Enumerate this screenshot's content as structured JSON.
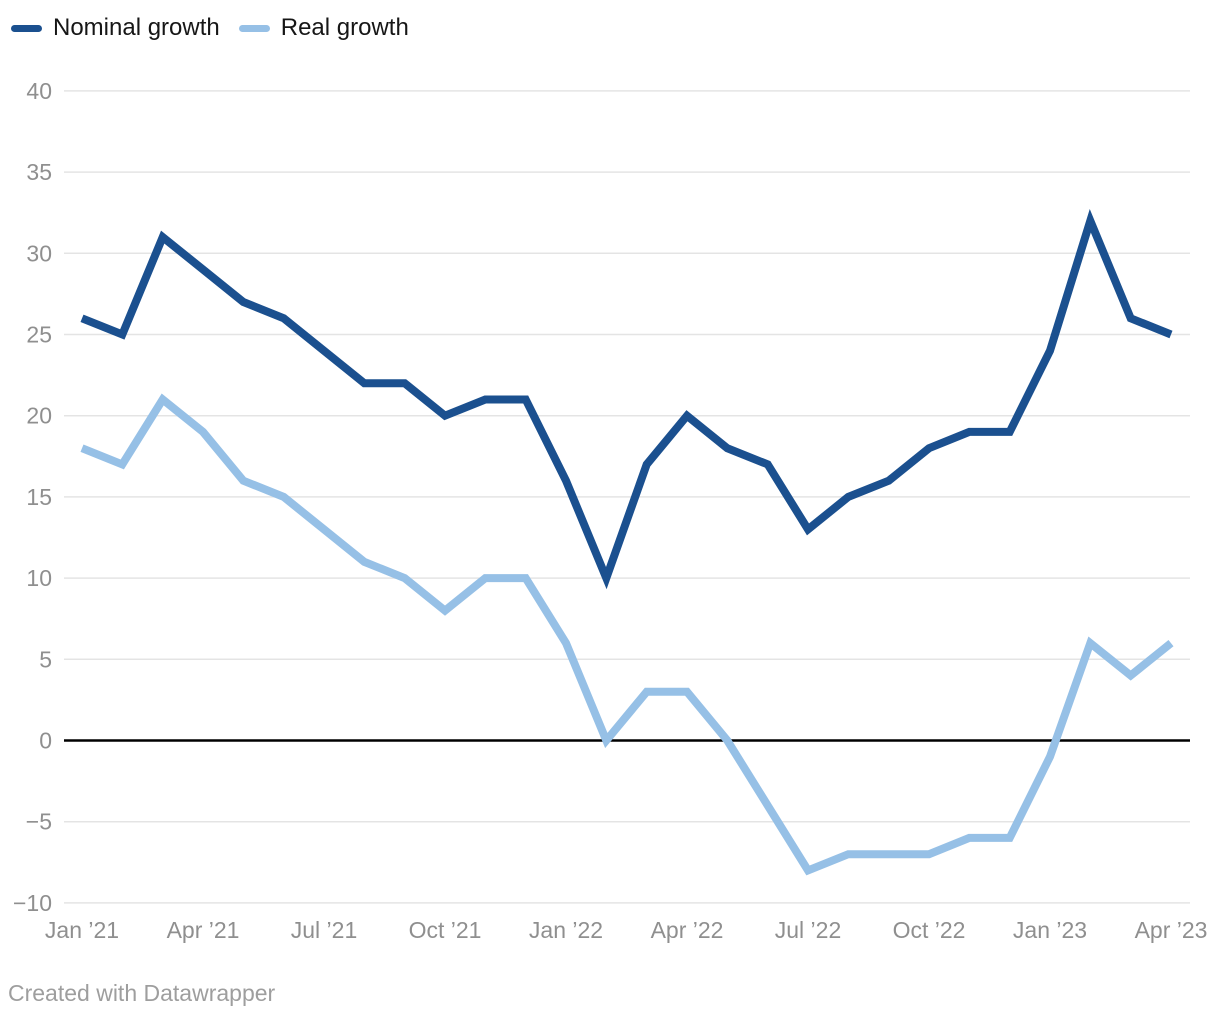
{
  "legend": {
    "items": [
      {
        "label": "Nominal growth",
        "color": "#1b508f"
      },
      {
        "label": "Real growth",
        "color": "#96c0e6"
      }
    ]
  },
  "footer": {
    "credit": "Created with Datawrapper"
  },
  "colors": {
    "nominal": "#1b508f",
    "real": "#96c0e6",
    "gridline": "#e4e4e4",
    "zero_line": "#000000",
    "tick_text": "#8f8f8f",
    "legend_text": "#161616",
    "credit_text": "#9e9e9e"
  },
  "chart_data": {
    "type": "line",
    "x": [
      "Jan 2021",
      "Feb 2021",
      "Mar 2021",
      "Apr 2021",
      "May 2021",
      "Jun 2021",
      "Jul 2021",
      "Aug 2021",
      "Sep 2021",
      "Oct 2021",
      "Nov 2021",
      "Dec 2021",
      "Jan 2022",
      "Feb 2022",
      "Mar 2022",
      "Apr 2022",
      "May 2022",
      "Jun 2022",
      "Jul 2022",
      "Aug 2022",
      "Sep 2022",
      "Oct 2022",
      "Nov 2022",
      "Dec 2022",
      "Jan 2023",
      "Feb 2023",
      "Mar 2023",
      "Apr 2023"
    ],
    "series": [
      {
        "name": "Nominal growth",
        "color": "#1b508f",
        "values": [
          26,
          25,
          31,
          29,
          27,
          26,
          24,
          22,
          22,
          20,
          21,
          21,
          16,
          10,
          17,
          20,
          18,
          17,
          13,
          15,
          16,
          18,
          19,
          19,
          24,
          32,
          26,
          25
        ]
      },
      {
        "name": "Real growth",
        "color": "#96c0e6",
        "values": [
          18,
          17,
          21,
          19,
          16,
          15,
          13,
          11,
          10,
          8,
          10,
          10,
          6,
          0,
          3,
          3,
          0,
          -4,
          -8,
          -7,
          -7,
          -7,
          -6,
          -6,
          -1,
          6,
          4,
          6
        ]
      }
    ],
    "title": "",
    "xlabel": "",
    "ylabel": "",
    "ylim": [
      -10,
      40
    ],
    "y_ticks": [
      40,
      35,
      30,
      25,
      20,
      15,
      10,
      5,
      0,
      -5,
      -10
    ],
    "x_tick_indices": [
      0,
      3,
      6,
      9,
      12,
      15,
      18,
      21,
      24,
      27
    ],
    "x_tick_labels": [
      "Jan ’21",
      "Apr ’21",
      "Jul ’21",
      "Oct ’21",
      "Jan ’22",
      "Apr ’22",
      "Jul ’22",
      "Oct ’22",
      "Jan ’23",
      "Apr ’23"
    ],
    "grid": true,
    "zero_baseline": true,
    "legend_position": "top-left"
  }
}
